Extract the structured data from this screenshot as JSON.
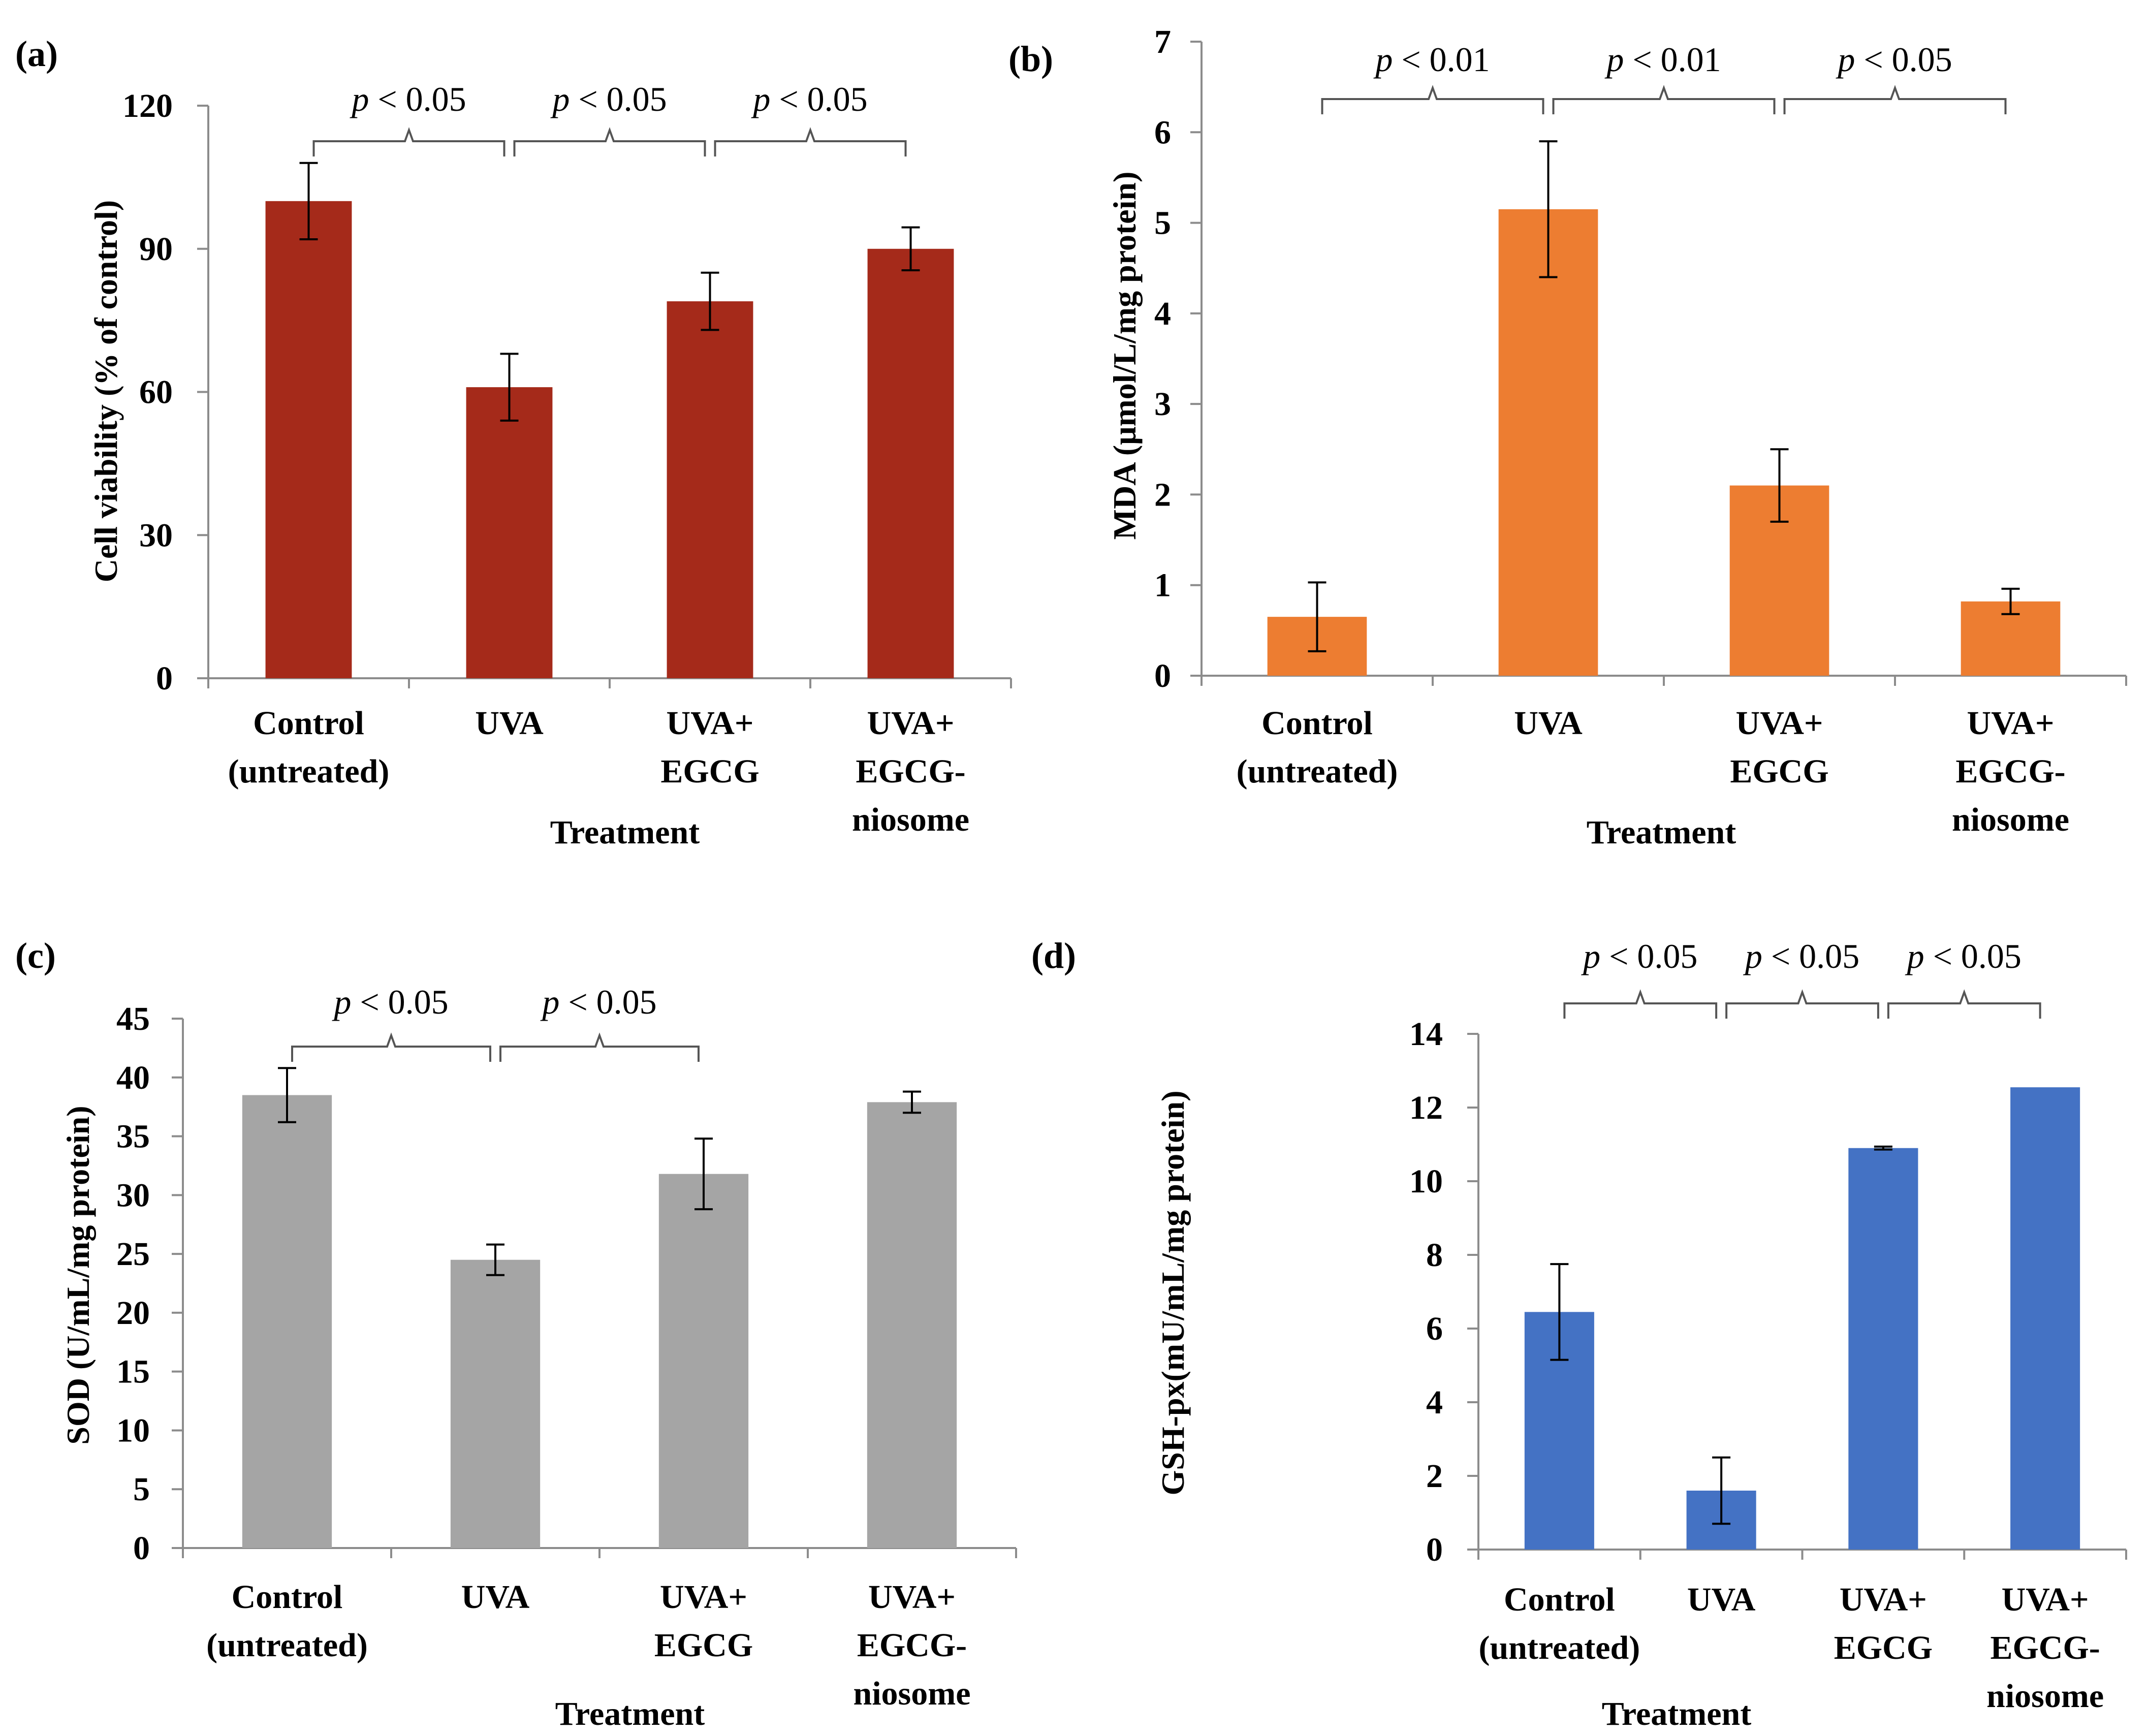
{
  "chart_data": [
    {
      "type": "bar",
      "panel": "(a)",
      "title": "",
      "xlabel": "Treatment",
      "ylabel": "Cell viability (% of control)",
      "categories": [
        [
          "Control",
          "(untreated)"
        ],
        [
          "UVA"
        ],
        [
          "UVA+",
          "EGCG"
        ],
        [
          "UVA+",
          "EGCG-",
          "niosome"
        ]
      ],
      "values": [
        100,
        61,
        79,
        90
      ],
      "errors": [
        8,
        7,
        6,
        4.5
      ],
      "ylim": [
        0,
        120
      ],
      "yticks": [
        0,
        30,
        60,
        90,
        120
      ],
      "color": "#A52A1A",
      "significance": [
        {
          "from": 0,
          "to": 1,
          "label": "p < 0.05"
        },
        {
          "from": 1,
          "to": 2,
          "label": "p < 0.05"
        },
        {
          "from": 2,
          "to": 3,
          "label": "p < 0.05"
        }
      ]
    },
    {
      "type": "bar",
      "panel": "(b)",
      "title": "",
      "xlabel": "Treatment",
      "ylabel": "MDA (μmol/L/mg  protein)",
      "categories": [
        [
          "Control",
          "(untreated)"
        ],
        [
          "UVA"
        ],
        [
          "UVA+",
          "EGCG"
        ],
        [
          "UVA+",
          "EGCG-",
          "niosome"
        ]
      ],
      "values": [
        0.65,
        5.15,
        2.1,
        0.82
      ],
      "errors": [
        0.38,
        0.75,
        0.4,
        0.14
      ],
      "ylim": [
        0,
        7
      ],
      "yticks": [
        0,
        1,
        2,
        3,
        4,
        5,
        6,
        7
      ],
      "color": "#ED7D31",
      "significance": [
        {
          "from": 0,
          "to": 1,
          "label": "p < 0.01"
        },
        {
          "from": 1,
          "to": 2,
          "label": "p < 0.01"
        },
        {
          "from": 2,
          "to": 3,
          "label": "p < 0.05"
        }
      ]
    },
    {
      "type": "bar",
      "panel": "(c)",
      "title": "",
      "xlabel": "Treatment",
      "ylabel": "SOD (U/mL/mg protein)",
      "categories": [
        [
          "Control",
          "(untreated)"
        ],
        [
          "UVA"
        ],
        [
          "UVA+",
          "EGCG"
        ],
        [
          "UVA+",
          "EGCG-",
          "niosome"
        ]
      ],
      "values": [
        38.5,
        24.5,
        31.8,
        37.9
      ],
      "errors": [
        2.3,
        1.3,
        3.0,
        0.9
      ],
      "ylim": [
        0,
        45
      ],
      "yticks": [
        0,
        5,
        10,
        15,
        20,
        25,
        30,
        35,
        40,
        45
      ],
      "color": "#A5A5A5",
      "significance": [
        {
          "from": 0,
          "to": 1,
          "label": "p < 0.05"
        },
        {
          "from": 1,
          "to": 2,
          "label": "p < 0.05"
        }
      ]
    },
    {
      "type": "bar",
      "panel": "(d)",
      "title": "",
      "xlabel": "Treatment",
      "ylabel": "GSH-px(mU/mL/mg protein)",
      "categories": [
        [
          "Control",
          "(untreated)"
        ],
        [
          "UVA"
        ],
        [
          "UVA+",
          "EGCG"
        ],
        [
          "UVA+",
          "EGCG-",
          "niosome"
        ]
      ],
      "values": [
        6.45,
        1.6,
        10.9,
        12.55
      ],
      "errors": [
        1.3,
        0.9,
        0.04,
        0
      ],
      "ylim": [
        0,
        14
      ],
      "yticks": [
        0,
        2,
        4,
        6,
        8,
        10,
        12,
        14
      ],
      "color": "#4472C4",
      "significance": [
        {
          "from": 0,
          "to": 1,
          "label": "p < 0.05"
        },
        {
          "from": 1,
          "to": 2,
          "label": "p < 0.05"
        },
        {
          "from": 2,
          "to": 3,
          "label": "p < 0.05"
        }
      ]
    }
  ]
}
